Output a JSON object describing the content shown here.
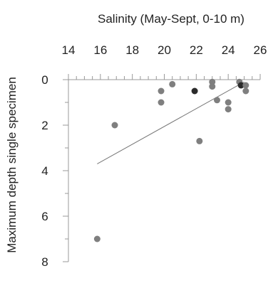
{
  "chart_data": {
    "type": "scatter",
    "xlabel": "Salinity (May-Sept, 0-10 m)",
    "ylabel": "Maximum depth single specimen",
    "xlim": [
      14,
      26
    ],
    "ylim": [
      0,
      8
    ],
    "x_ticks": [
      14,
      16,
      18,
      20,
      22,
      24,
      26
    ],
    "x_minor_step": 0.5,
    "y_ticks": [
      0,
      2,
      4,
      6,
      8
    ],
    "y_minor_step": 1,
    "x_axis_position": "top",
    "y_axis_inverted": true,
    "grid": false,
    "legend": "none",
    "colors": {
      "light_point": "#7f7f7f",
      "dark_point": "#2b2b2b",
      "trend": "#777777",
      "axis": "#999999"
    },
    "points": [
      {
        "x": 15.8,
        "y": 7.0,
        "shade": "light"
      },
      {
        "x": 16.9,
        "y": 2.0,
        "shade": "light"
      },
      {
        "x": 19.8,
        "y": 0.5,
        "shade": "light"
      },
      {
        "x": 19.8,
        "y": 1.0,
        "shade": "light"
      },
      {
        "x": 20.5,
        "y": 0.2,
        "shade": "light"
      },
      {
        "x": 21.9,
        "y": 0.5,
        "shade": "dark"
      },
      {
        "x": 22.2,
        "y": 2.7,
        "shade": "light"
      },
      {
        "x": 23.0,
        "y": 0.1,
        "shade": "light"
      },
      {
        "x": 23.0,
        "y": 0.3,
        "shade": "light"
      },
      {
        "x": 23.3,
        "y": 0.9,
        "shade": "light"
      },
      {
        "x": 24.0,
        "y": 1.0,
        "shade": "light"
      },
      {
        "x": 24.0,
        "y": 1.3,
        "shade": "light"
      },
      {
        "x": 24.7,
        "y": 0.1,
        "shade": "light"
      },
      {
        "x": 24.8,
        "y": 0.25,
        "shade": "dark"
      },
      {
        "x": 25.1,
        "y": 0.25,
        "shade": "light"
      },
      {
        "x": 25.1,
        "y": 0.5,
        "shade": "light"
      }
    ],
    "trendline": {
      "x": [
        15.8,
        25.0
      ],
      "y": [
        3.7,
        0.1
      ]
    }
  }
}
